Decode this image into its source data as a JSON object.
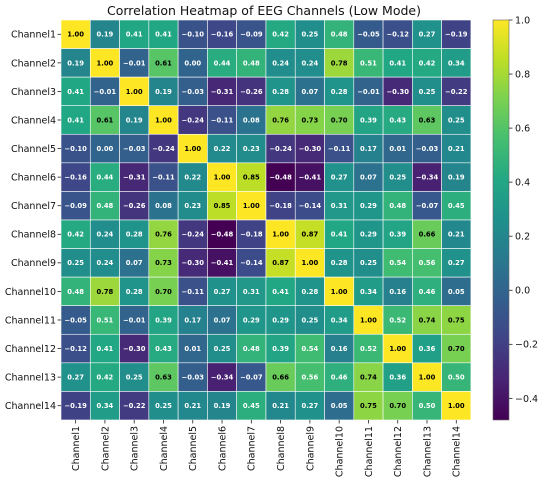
{
  "chart_data": {
    "type": "heatmap",
    "title": "Correlation Heatmap of EEG Channels (Low Mode)",
    "xlabel": "",
    "ylabel": "",
    "rows": [
      "Channel1",
      "Channel2",
      "Channel3",
      "Channel4",
      "Channel5",
      "Channel6",
      "Channel7",
      "Channel8",
      "Channel9",
      "Channel10",
      "Channel11",
      "Channel12",
      "Channel13",
      "Channel14"
    ],
    "columns": [
      "Channel1",
      "Channel2",
      "Channel3",
      "Channel4",
      "Channel5",
      "Channel6",
      "Channel7",
      "Channel8",
      "Channel9",
      "Channel10",
      "Channel11",
      "Channel12",
      "Channel13",
      "Channel14"
    ],
    "values": [
      [
        1.0,
        0.19,
        0.41,
        0.41,
        -0.1,
        -0.16,
        -0.09,
        0.42,
        0.25,
        0.48,
        -0.05,
        -0.12,
        0.27,
        -0.19
      ],
      [
        0.19,
        1.0,
        -0.01,
        0.61,
        -0.0,
        0.44,
        0.48,
        0.24,
        0.24,
        0.78,
        0.51,
        0.41,
        0.42,
        0.34
      ],
      [
        0.41,
        -0.01,
        1.0,
        0.19,
        -0.03,
        -0.31,
        -0.26,
        0.28,
        0.07,
        0.28,
        -0.01,
        -0.3,
        0.25,
        -0.22
      ],
      [
        0.41,
        0.61,
        0.19,
        1.0,
        -0.24,
        -0.11,
        0.08,
        0.76,
        0.73,
        0.7,
        0.39,
        0.43,
        0.63,
        0.25
      ],
      [
        -0.1,
        -0.0,
        -0.03,
        -0.24,
        1.0,
        0.22,
        0.23,
        -0.24,
        -0.3,
        -0.11,
        0.17,
        0.01,
        -0.03,
        0.21
      ],
      [
        -0.16,
        0.44,
        -0.31,
        -0.11,
        0.22,
        1.0,
        0.85,
        -0.48,
        -0.41,
        0.27,
        0.07,
        0.25,
        -0.34,
        0.19
      ],
      [
        -0.09,
        0.48,
        -0.26,
        0.08,
        0.23,
        0.85,
        1.0,
        -0.18,
        -0.14,
        0.31,
        0.29,
        0.48,
        -0.07,
        0.45
      ],
      [
        0.42,
        0.24,
        0.28,
        0.76,
        -0.24,
        -0.48,
        -0.18,
        1.0,
        0.87,
        0.41,
        0.29,
        0.39,
        0.66,
        0.21
      ],
      [
        0.25,
        0.24,
        0.07,
        0.73,
        -0.3,
        -0.41,
        -0.14,
        0.87,
        1.0,
        0.28,
        0.25,
        0.54,
        0.56,
        0.27
      ],
      [
        0.48,
        0.78,
        0.28,
        0.7,
        -0.11,
        0.27,
        0.31,
        0.41,
        0.28,
        1.0,
        0.34,
        0.16,
        0.46,
        0.05
      ],
      [
        -0.05,
        0.51,
        -0.01,
        0.39,
        0.17,
        0.07,
        0.29,
        0.29,
        0.25,
        0.34,
        1.0,
        0.52,
        0.74,
        0.75
      ],
      [
        -0.12,
        0.41,
        -0.3,
        0.43,
        0.01,
        0.25,
        0.48,
        0.39,
        0.54,
        0.16,
        0.52,
        1.0,
        0.36,
        0.7
      ],
      [
        0.27,
        0.42,
        0.25,
        0.63,
        -0.03,
        -0.34,
        -0.07,
        0.66,
        0.56,
        0.46,
        0.74,
        0.36,
        1.0,
        0.5
      ],
      [
        -0.19,
        0.34,
        -0.22,
        0.25,
        0.21,
        0.19,
        0.45,
        0.21,
        0.27,
        0.05,
        0.75,
        0.7,
        0.5,
        1.0
      ]
    ],
    "colormap": "viridis",
    "vmin": -0.48,
    "vmax": 1.0,
    "colorbar_ticks": [
      1.0,
      0.8,
      0.6,
      0.4,
      0.2,
      0.0,
      -0.2,
      -0.4
    ],
    "colorbar_tick_labels": [
      "1.0",
      "0.8",
      "0.6",
      "0.4",
      "0.2",
      "0.0",
      "−0.2",
      "−0.4"
    ],
    "annotated": true,
    "cell_border_color": "#ffffff"
  }
}
